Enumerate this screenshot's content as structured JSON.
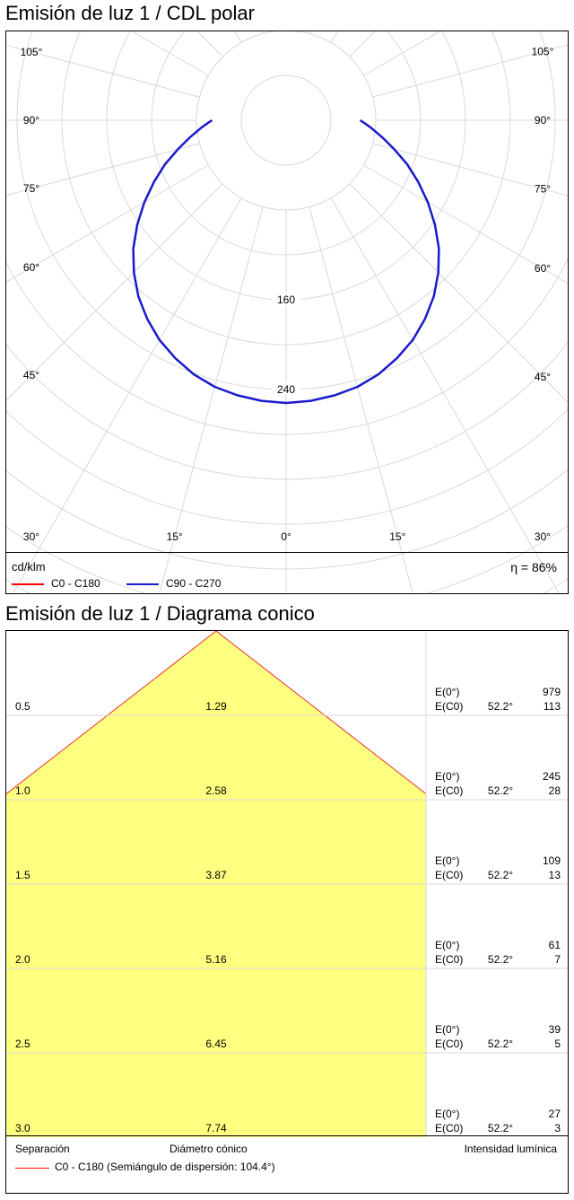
{
  "polar": {
    "title": "Emisión de luz 1 / CDL polar",
    "unit": "cd/klm",
    "efficiency": "η = 86%",
    "legend": [
      {
        "label": "C0 - C180",
        "color": "#ff0000"
      },
      {
        "label": "C90 - C270",
        "color": "#1a1acc"
      }
    ]
  },
  "cone": {
    "title": "Emisión de luz 1 / Diagrama conico",
    "footer": {
      "separation": "Separación",
      "diameter": "Diámetro cónico",
      "intensity": "Intensidad lumínica",
      "legend": "C0 - C180 (Semiángulo de dispersión: 104.4°)",
      "legend_color": "#ff0000"
    },
    "label_e0": "E(0°)",
    "label_ec0": "E(C0)"
  },
  "chart_data": [
    {
      "type": "polar",
      "unit": "cd/klm",
      "radial_tick_labels": [
        {
          "value": 160,
          "label": "160"
        },
        {
          "value": 240,
          "label": "240"
        }
      ],
      "radial_max": 320,
      "angle_labels": [
        {
          "angle": 0,
          "label": "0°"
        },
        {
          "angle": 15,
          "label": "15°"
        },
        {
          "angle": 30,
          "label": "30°"
        },
        {
          "angle": 45,
          "label": "45°"
        },
        {
          "angle": 60,
          "label": "60°"
        },
        {
          "angle": 75,
          "label": "75°"
        },
        {
          "angle": 90,
          "label": "90°"
        },
        {
          "angle": 105,
          "label": "105°"
        }
      ],
      "series": [
        {
          "name": "C90 - C270",
          "color": "#1a1acc",
          "angles": [
            0,
            5,
            10,
            15,
            20,
            25,
            30,
            35,
            40,
            45,
            50,
            55,
            60,
            65,
            70,
            75,
            80,
            85,
            88,
            90
          ],
          "values": [
            252,
            251,
            249,
            246,
            241,
            234,
            226,
            216,
            205,
            192,
            178,
            162,
            146,
            130,
            115,
            100,
            87,
            76,
            70,
            66
          ]
        }
      ],
      "efficiency": "η = 86%"
    },
    {
      "type": "cone",
      "half_angle": 104.4,
      "rows": [
        {
          "sep": "0.5",
          "diam": "1.29",
          "angle": "52.2°",
          "e0": "979",
          "ec0": "113"
        },
        {
          "sep": "1.0",
          "diam": "2.58",
          "angle": "52.2°",
          "e0": "245",
          "ec0": "28"
        },
        {
          "sep": "1.5",
          "diam": "3.87",
          "angle": "52.2°",
          "e0": "109",
          "ec0": "13"
        },
        {
          "sep": "2.0",
          "diam": "5.16",
          "angle": "52.2°",
          "e0": "61",
          "ec0": "7"
        },
        {
          "sep": "2.5",
          "diam": "6.45",
          "angle": "52.2°",
          "e0": "39",
          "ec0": "5"
        },
        {
          "sep": "3.0",
          "diam": "7.74",
          "angle": "52.2°",
          "e0": "27",
          "ec0": "3"
        }
      ]
    }
  ]
}
